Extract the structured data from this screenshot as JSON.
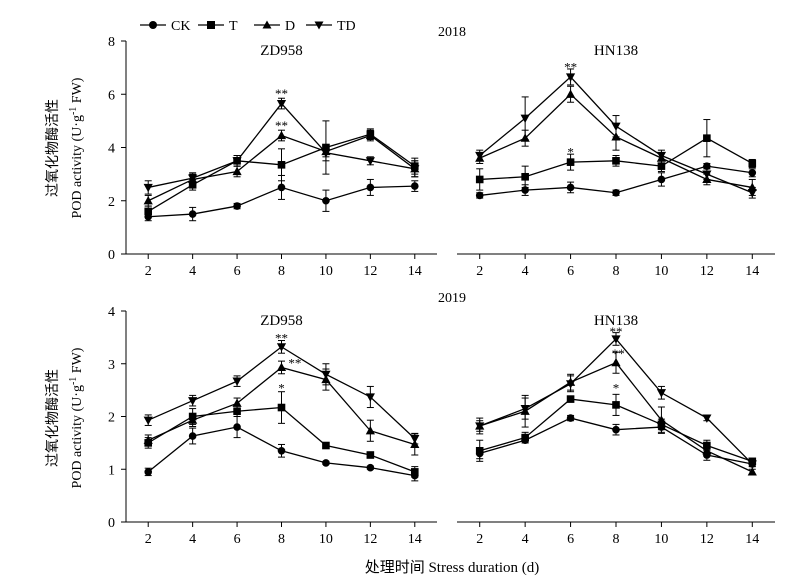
{
  "figure": {
    "legend": [
      {
        "name": "CK",
        "marker": "circle"
      },
      {
        "name": "T",
        "marker": "square"
      },
      {
        "name": "D",
        "marker": "triangle-up"
      },
      {
        "name": "TD",
        "marker": "triangle-down"
      }
    ],
    "year_labels": [
      "2018",
      "2019"
    ],
    "ylabel_zh": "过氧化物酶活性",
    "ylabel_en_pre": "POD activity (U·g",
    "ylabel_en_sup": "-1",
    "ylabel_en_post": " FW)",
    "xlabel": "处理时间 Stress duration (d)"
  },
  "chart_data": [
    {
      "type": "line",
      "year": "2018",
      "title": "ZD958",
      "x": [
        2,
        4,
        6,
        8,
        10,
        12,
        14
      ],
      "xlim": [
        1,
        15
      ],
      "ylim": [
        0,
        8
      ],
      "yticks": [
        0,
        2,
        4,
        6,
        8
      ],
      "series": [
        {
          "name": "CK",
          "values": [
            1.4,
            1.5,
            1.8,
            2.5,
            2.0,
            2.5,
            2.55
          ],
          "errors": [
            0.15,
            0.25,
            0.1,
            0.45,
            0.4,
            0.3,
            0.2
          ]
        },
        {
          "name": "T",
          "values": [
            1.6,
            2.6,
            3.5,
            3.35,
            4.0,
            4.5,
            3.3
          ],
          "errors": [
            0.2,
            0.2,
            0.2,
            0.6,
            1.0,
            0.2,
            0.3
          ]
        },
        {
          "name": "D",
          "values": [
            2.0,
            2.8,
            3.1,
            4.45,
            3.85,
            4.45,
            3.2
          ],
          "errors": [
            0.2,
            0.2,
            0.2,
            0.2,
            0.2,
            0.2,
            0.3
          ]
        },
        {
          "name": "TD",
          "values": [
            2.5,
            2.85,
            3.5,
            5.65,
            3.8,
            3.5,
            3.2
          ],
          "errors": [
            0.25,
            0.2,
            0.2,
            0.2,
            0.3,
            0.15,
            0.3
          ]
        }
      ],
      "annotations": [
        {
          "x": 8,
          "y": 6.05,
          "text": "**"
        },
        {
          "x": 8,
          "y": 4.85,
          "text": "**"
        }
      ]
    },
    {
      "type": "line",
      "year": "2018",
      "title": "HN138",
      "x": [
        2,
        4,
        6,
        8,
        10,
        12,
        14
      ],
      "xlim": [
        1,
        15
      ],
      "ylim": [
        0,
        8
      ],
      "series": [
        {
          "name": "CK",
          "values": [
            2.2,
            2.4,
            2.5,
            2.3,
            2.8,
            3.3,
            3.05
          ],
          "errors": [
            0.1,
            0.2,
            0.2,
            0.1,
            0.25,
            0.1,
            0.15
          ]
        },
        {
          "name": "T",
          "values": [
            2.8,
            2.9,
            3.45,
            3.5,
            3.3,
            4.35,
            3.4
          ],
          "errors": [
            0.4,
            0.4,
            0.3,
            0.2,
            0.2,
            0.7,
            0.15
          ]
        },
        {
          "name": "D",
          "values": [
            3.6,
            4.35,
            6.0,
            4.4,
            3.6,
            2.8,
            2.5
          ],
          "errors": [
            0.2,
            0.3,
            0.3,
            0.5,
            0.2,
            0.2,
            0.3
          ]
        },
        {
          "name": "TD",
          "values": [
            3.7,
            5.1,
            6.65,
            4.8,
            3.7,
            3.0,
            2.3
          ],
          "errors": [
            0.2,
            0.8,
            0.3,
            0.4,
            0.2,
            0.2,
            0.2
          ]
        }
      ],
      "annotations": [
        {
          "x": 6,
          "y": 7.05,
          "text": "**"
        },
        {
          "x": 6,
          "y": 3.85,
          "text": "*"
        }
      ]
    },
    {
      "type": "line",
      "year": "2019",
      "title": "ZD958",
      "x": [
        2,
        4,
        6,
        8,
        10,
        12,
        14
      ],
      "xlim": [
        1,
        15
      ],
      "ylim": [
        0,
        4
      ],
      "yticks": [
        0,
        1,
        2,
        3,
        4
      ],
      "series": [
        {
          "name": "CK",
          "values": [
            0.95,
            1.63,
            1.8,
            1.35,
            1.12,
            1.03,
            0.88
          ],
          "errors": [
            0.07,
            0.15,
            0.2,
            0.12,
            0.03,
            0.03,
            0.1
          ]
        },
        {
          "name": "T",
          "values": [
            1.5,
            2.0,
            2.1,
            2.17,
            1.45,
            1.27,
            0.95
          ],
          "errors": [
            0.1,
            0.15,
            0.1,
            0.3,
            0.05,
            0.05,
            0.1
          ]
        },
        {
          "name": "D",
          "values": [
            1.55,
            1.93,
            2.25,
            2.93,
            2.7,
            1.73,
            1.47
          ],
          "errors": [
            0.1,
            0.12,
            0.1,
            0.12,
            0.2,
            0.2,
            0.2
          ]
        },
        {
          "name": "TD",
          "values": [
            1.93,
            2.3,
            2.67,
            3.32,
            2.8,
            2.37,
            1.58
          ],
          "errors": [
            0.1,
            0.1,
            0.1,
            0.12,
            0.2,
            0.2,
            0.1
          ]
        }
      ],
      "annotations": [
        {
          "x": 8,
          "y": 3.5,
          "text": "**"
        },
        {
          "x": 8.6,
          "y": 3.02,
          "text": "**"
        },
        {
          "x": 8,
          "y": 2.55,
          "text": "*"
        }
      ]
    },
    {
      "type": "line",
      "year": "2019",
      "title": "HN138",
      "x": [
        2,
        4,
        6,
        8,
        10,
        12,
        14
      ],
      "xlim": [
        1,
        15
      ],
      "ylim": [
        0,
        4
      ],
      "series": [
        {
          "name": "CK",
          "values": [
            1.3,
            1.55,
            1.97,
            1.75,
            1.8,
            1.27,
            1.1
          ],
          "errors": [
            0.1,
            0.05,
            0.05,
            0.1,
            0.1,
            0.1,
            0.05
          ]
        },
        {
          "name": "T",
          "values": [
            1.35,
            1.6,
            2.33,
            2.22,
            1.85,
            1.45,
            1.15
          ],
          "errors": [
            0.2,
            0.1,
            0.05,
            0.2,
            0.1,
            0.1,
            0.05
          ]
        },
        {
          "name": "D",
          "values": [
            1.82,
            2.1,
            2.65,
            3.02,
            1.93,
            1.35,
            0.95
          ],
          "errors": [
            0.1,
            0.3,
            0.15,
            0.2,
            0.25,
            0.1,
            0.05
          ]
        },
        {
          "name": "TD",
          "values": [
            1.82,
            2.15,
            2.62,
            3.47,
            2.45,
            1.97,
            1.1
          ],
          "errors": [
            0.15,
            0.2,
            0.15,
            0.12,
            0.12,
            0.05,
            0.05
          ]
        }
      ],
      "annotations": [
        {
          "x": 8,
          "y": 3.62,
          "text": "**"
        },
        {
          "x": 8.1,
          "y": 3.2,
          "text": "**"
        },
        {
          "x": 8,
          "y": 2.55,
          "text": "*"
        }
      ]
    }
  ]
}
